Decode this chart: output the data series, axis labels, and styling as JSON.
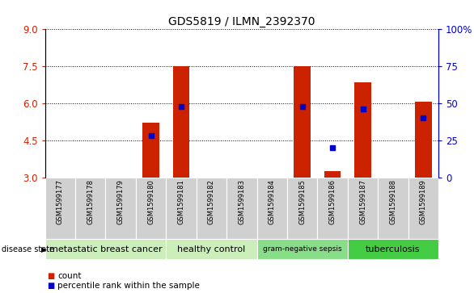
{
  "title": "GDS5819 / ILMN_2392370",
  "samples": [
    "GSM1599177",
    "GSM1599178",
    "GSM1599179",
    "GSM1599180",
    "GSM1599181",
    "GSM1599182",
    "GSM1599183",
    "GSM1599184",
    "GSM1599185",
    "GSM1599186",
    "GSM1599187",
    "GSM1599188",
    "GSM1599189"
  ],
  "counts": [
    null,
    null,
    null,
    5.2,
    7.52,
    null,
    null,
    null,
    7.52,
    3.25,
    6.85,
    null,
    6.08
  ],
  "percentile_ranks": [
    null,
    null,
    null,
    28,
    48,
    null,
    null,
    null,
    48,
    20,
    46,
    null,
    40
  ],
  "ylim_left": [
    3,
    9
  ],
  "ylim_right": [
    0,
    100
  ],
  "yticks_left": [
    3,
    4.5,
    6,
    7.5,
    9
  ],
  "yticks_right": [
    0,
    25,
    50,
    75,
    100
  ],
  "group_spans": [
    [
      0,
      4,
      "metastatic breast cancer",
      "#cceebb"
    ],
    [
      4,
      7,
      "healthy control",
      "#cceebb"
    ],
    [
      7,
      10,
      "gram-negative sepsis",
      "#88dd88"
    ],
    [
      10,
      13,
      "tuberculosis",
      "#44cc44"
    ]
  ],
  "bar_color": "#cc2200",
  "percentile_color": "#0000cc",
  "tick_color_left": "#cc2200",
  "tick_color_right": "#0000cc",
  "bar_width": 0.55,
  "n_samples": 13,
  "sample_bg_color": "#d0d0d0",
  "title_fontsize": 10,
  "legend_square_size": 7,
  "legend_fontsize": 7.5
}
